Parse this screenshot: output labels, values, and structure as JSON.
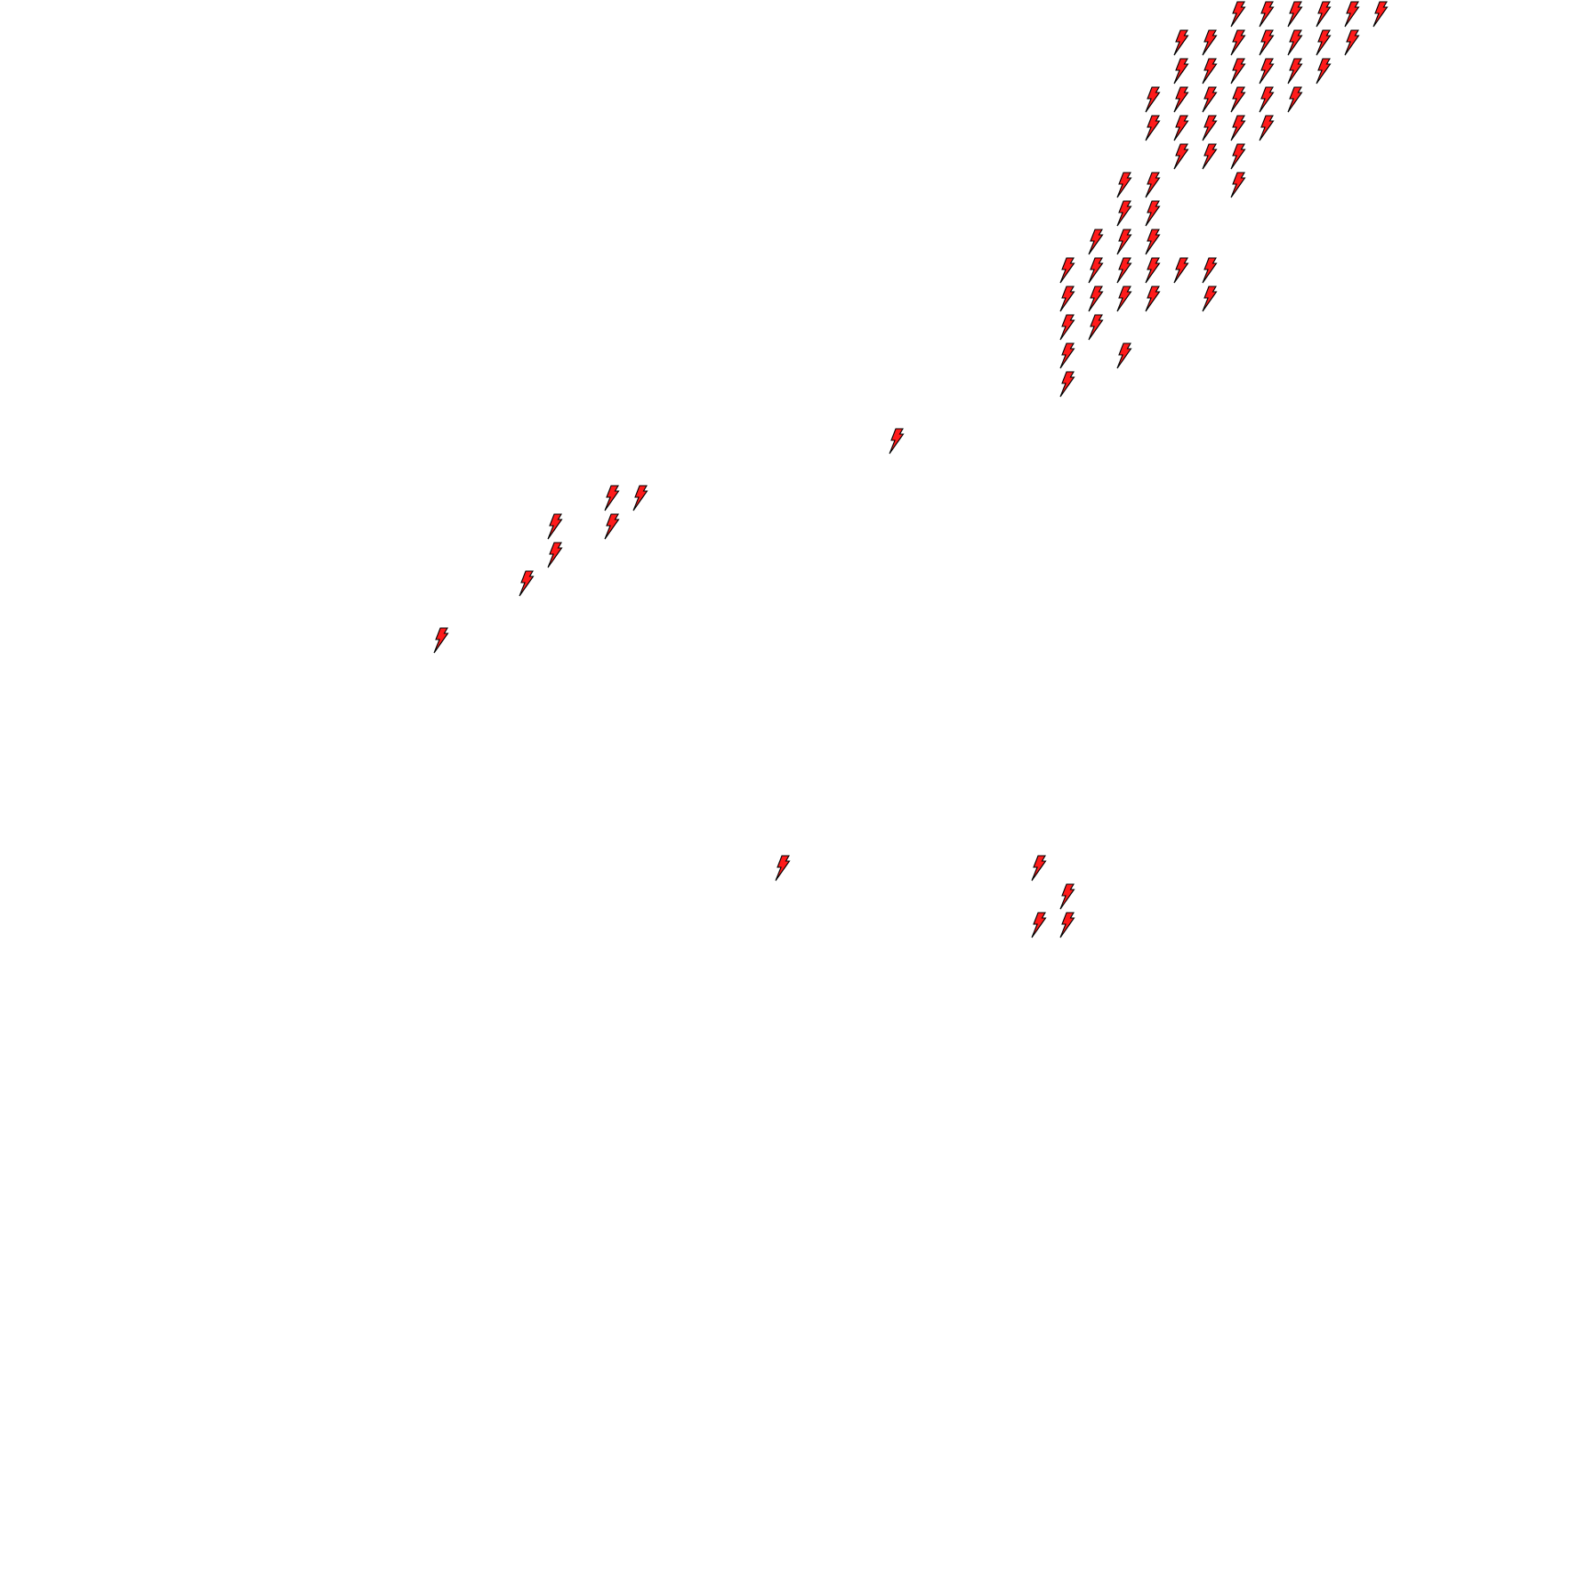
{
  "map": {
    "background_color": "#ffffff",
    "layer": "lightning",
    "marker_icon": "lightning-bolt-icon",
    "marker_fill": "#ff1a1a",
    "marker_stroke": "#000000"
  }
}
